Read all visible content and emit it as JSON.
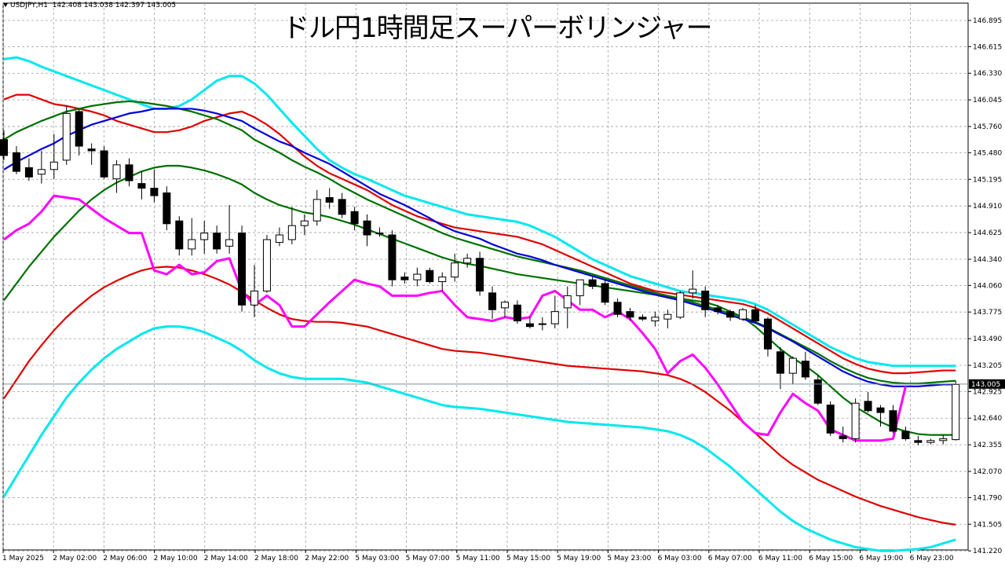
{
  "header": {
    "symbol": "USDJPY,H1",
    "ohlc": "142.408 143.038 142.397 143.005"
  },
  "title": "ドル円1時間足スーパーボリンジャー",
  "current_price": "143.005",
  "colors": {
    "candle_bull": "#ffffff",
    "candle_bear": "#000000",
    "grid": "#a0a0a0",
    "mid": "#0000dd",
    "sigma1": "#007000",
    "sigma2": "#e00000",
    "sigma3": "#00e8ee",
    "chikou": "#ff00ff",
    "price_line": "#7a8fa0"
  },
  "chart_data": {
    "type": "candlestick",
    "symbol": "USDJPY",
    "timeframe": "H1",
    "ylim": [
      141.23,
      147.08
    ],
    "y_ticks": [
      "146.895",
      "146.615",
      "146.330",
      "146.045",
      "145.760",
      "145.480",
      "145.195",
      "144.910",
      "144.625",
      "144.340",
      "144.060",
      "143.775",
      "143.490",
      "143.205",
      "142.925",
      "142.640",
      "142.355",
      "142.070",
      "141.790",
      "141.505",
      "141.220"
    ],
    "x_ticks": [
      "1 May 2025",
      "2 May 02:00",
      "2 May 06:00",
      "2 May 10:00",
      "2 May 14:00",
      "2 May 18:00",
      "2 May 22:00",
      "5 May 03:00",
      "5 May 07:00",
      "5 May 11:00",
      "5 May 15:00",
      "5 May 19:00",
      "5 May 23:00",
      "6 May 03:00",
      "6 May 07:00",
      "6 May 11:00",
      "6 May 15:00",
      "6 May 19:00",
      "6 May 23:00"
    ],
    "candles": [
      [
        145.62,
        145.72,
        145.4,
        145.45
      ],
      [
        145.48,
        145.55,
        145.25,
        145.28
      ],
      [
        145.32,
        145.42,
        145.18,
        145.22
      ],
      [
        145.25,
        145.5,
        145.15,
        145.3
      ],
      [
        145.3,
        145.68,
        145.2,
        145.38
      ],
      [
        145.4,
        145.98,
        145.35,
        145.9
      ],
      [
        145.92,
        145.95,
        145.45,
        145.55
      ],
      [
        145.52,
        145.58,
        145.35,
        145.5
      ],
      [
        145.5,
        145.55,
        145.2,
        145.22
      ],
      [
        145.2,
        145.4,
        145.05,
        145.35
      ],
      [
        145.35,
        145.42,
        145.12,
        145.18
      ],
      [
        145.15,
        145.28,
        144.98,
        145.1
      ],
      [
        145.1,
        145.3,
        144.95,
        145.02
      ],
      [
        145.05,
        145.12,
        144.65,
        144.72
      ],
      [
        144.75,
        144.8,
        144.38,
        144.45
      ],
      [
        144.45,
        144.78,
        144.38,
        144.55
      ],
      [
        144.55,
        144.75,
        144.4,
        144.62
      ],
      [
        144.62,
        144.7,
        144.4,
        144.45
      ],
      [
        144.48,
        144.92,
        144.4,
        144.55
      ],
      [
        144.62,
        144.7,
        143.78,
        143.85
      ],
      [
        143.85,
        144.28,
        143.72,
        144.0
      ],
      [
        144.0,
        144.6,
        143.98,
        144.55
      ],
      [
        144.52,
        144.68,
        144.48,
        144.6
      ],
      [
        144.55,
        144.9,
        144.5,
        144.7
      ],
      [
        144.7,
        144.82,
        144.6,
        144.75
      ],
      [
        144.75,
        145.08,
        144.7,
        144.98
      ],
      [
        145.0,
        145.1,
        144.88,
        144.95
      ],
      [
        144.98,
        145.05,
        144.78,
        144.82
      ],
      [
        144.85,
        144.9,
        144.65,
        144.72
      ],
      [
        144.75,
        144.82,
        144.48,
        144.6
      ],
      [
        144.62,
        144.68,
        144.58,
        144.62
      ],
      [
        144.6,
        144.65,
        144.05,
        144.12
      ],
      [
        144.15,
        144.2,
        144.08,
        144.12
      ],
      [
        144.12,
        144.25,
        144.05,
        144.18
      ],
      [
        144.22,
        144.25,
        144.08,
        144.1
      ],
      [
        144.1,
        144.2,
        144.0,
        144.15
      ],
      [
        144.15,
        144.4,
        144.1,
        144.3
      ],
      [
        144.3,
        144.4,
        144.25,
        144.35
      ],
      [
        144.35,
        144.42,
        143.95,
        144.0
      ],
      [
        143.98,
        144.05,
        143.7,
        143.8
      ],
      [
        143.82,
        143.9,
        143.72,
        143.88
      ],
      [
        143.85,
        143.9,
        143.65,
        143.68
      ],
      [
        143.65,
        143.72,
        143.6,
        143.62
      ],
      [
        143.65,
        143.72,
        143.58,
        143.65
      ],
      [
        143.65,
        143.95,
        143.6,
        143.78
      ],
      [
        143.82,
        144.05,
        143.6,
        143.95
      ],
      [
        143.95,
        144.12,
        143.85,
        144.12
      ],
      [
        144.12,
        144.15,
        144.02,
        144.05
      ],
      [
        144.08,
        144.12,
        143.85,
        143.88
      ],
      [
        143.88,
        143.92,
        143.72,
        143.75
      ],
      [
        143.78,
        143.82,
        143.68,
        143.72
      ],
      [
        143.72,
        143.75,
        143.68,
        143.7
      ],
      [
        143.68,
        143.78,
        143.62,
        143.72
      ],
      [
        143.7,
        143.8,
        143.6,
        143.75
      ],
      [
        143.72,
        144.0,
        143.7,
        143.98
      ],
      [
        143.98,
        144.22,
        143.92,
        144.02
      ],
      [
        144.0,
        144.05,
        143.72,
        143.8
      ],
      [
        143.82,
        143.85,
        143.75,
        143.78
      ],
      [
        143.78,
        143.8,
        143.68,
        143.72
      ],
      [
        143.7,
        143.82,
        143.68,
        143.8
      ],
      [
        143.8,
        143.85,
        143.65,
        143.68
      ],
      [
        143.7,
        143.72,
        143.3,
        143.38
      ],
      [
        143.35,
        143.4,
        142.95,
        143.12
      ],
      [
        143.12,
        143.3,
        143.0,
        143.28
      ],
      [
        143.25,
        143.35,
        143.05,
        143.08
      ],
      [
        143.05,
        143.1,
        142.78,
        142.8
      ],
      [
        142.78,
        142.82,
        142.45,
        142.48
      ],
      [
        142.45,
        142.55,
        142.38,
        142.42
      ],
      [
        142.42,
        142.85,
        142.38,
        142.8
      ],
      [
        142.82,
        142.92,
        142.7,
        142.72
      ],
      [
        142.75,
        142.78,
        142.55,
        142.7
      ],
      [
        142.72,
        142.78,
        142.48,
        142.5
      ],
      [
        142.5,
        142.55,
        142.4,
        142.42
      ],
      [
        142.4,
        142.45,
        142.35,
        142.38
      ],
      [
        142.38,
        142.42,
        142.36,
        142.4
      ],
      [
        142.4,
        142.46,
        142.36,
        142.42
      ],
      [
        142.41,
        143.04,
        142.4,
        143.0
      ]
    ],
    "middle_band": [
      145.3,
      145.38,
      145.45,
      145.52,
      145.58,
      145.66,
      145.72,
      145.78,
      145.82,
      145.86,
      145.9,
      145.92,
      145.95,
      145.95,
      145.95,
      145.95,
      145.93,
      145.9,
      145.86,
      145.82,
      145.74,
      145.67,
      145.6,
      145.55,
      145.48,
      145.42,
      145.36,
      145.28,
      145.2,
      145.12,
      145.04,
      144.98,
      144.92,
      144.85,
      144.78,
      144.7,
      144.64,
      144.6,
      144.56,
      144.5,
      144.45,
      144.4,
      144.37,
      144.33,
      144.28,
      144.24,
      144.2,
      144.16,
      144.12,
      144.08,
      144.04,
      144.0,
      143.96,
      143.93,
      143.9,
      143.86,
      143.82,
      143.78,
      143.74,
      143.7,
      143.66,
      143.6,
      143.53,
      143.46,
      143.38,
      143.3,
      143.22,
      143.14,
      143.08,
      143.03,
      143.0,
      142.98,
      142.98,
      142.98,
      142.99,
      143.0,
      143.0
    ],
    "sigma1_upper": [
      145.62,
      145.7,
      145.76,
      145.82,
      145.87,
      145.92,
      145.95,
      145.98,
      146.0,
      146.02,
      146.03,
      146.02,
      146.0,
      145.98,
      145.95,
      145.92,
      145.88,
      145.84,
      145.78,
      145.72,
      145.62,
      145.55,
      145.48,
      145.4,
      145.33,
      145.27,
      145.2,
      145.12,
      145.05,
      144.98,
      144.92,
      144.86,
      144.8,
      144.74,
      144.68,
      144.62,
      144.57,
      144.53,
      144.49,
      144.45,
      144.41,
      144.37,
      144.34,
      144.31,
      144.28,
      144.25,
      144.22,
      144.18,
      144.14,
      144.1,
      144.06,
      144.02,
      143.98,
      143.95,
      143.92,
      143.88,
      143.84,
      143.8,
      143.76,
      143.72,
      143.67,
      143.61,
      143.54,
      143.47,
      143.4,
      143.33,
      143.25,
      143.18,
      143.12,
      143.07,
      143.04,
      143.02,
      143.01,
      143.01,
      143.02,
      143.03,
      143.04
    ],
    "sigma1_lower": [
      143.9,
      144.08,
      144.26,
      144.42,
      144.58,
      144.72,
      144.86,
      144.98,
      145.08,
      145.16,
      145.22,
      145.28,
      145.32,
      145.34,
      145.34,
      145.32,
      145.29,
      145.25,
      145.2,
      145.14,
      145.05,
      144.98,
      144.92,
      144.88,
      144.84,
      144.82,
      144.79,
      144.75,
      144.71,
      144.66,
      144.61,
      144.56,
      144.51,
      144.46,
      144.41,
      144.36,
      144.32,
      144.29,
      144.27,
      144.24,
      144.21,
      144.18,
      144.16,
      144.14,
      144.12,
      144.1,
      144.08,
      144.06,
      144.04,
      144.02,
      144.0,
      143.98,
      143.96,
      143.94,
      143.92,
      143.9,
      143.88,
      143.84,
      143.78,
      143.72,
      143.62,
      143.5,
      143.38,
      143.28,
      143.2,
      143.1,
      142.98,
      142.86,
      142.76,
      142.68,
      142.6,
      142.54,
      142.5,
      142.47,
      142.46,
      142.46,
      142.46
    ],
    "sigma2_upper": [
      146.05,
      146.1,
      146.1,
      146.05,
      146.0,
      145.98,
      145.95,
      145.92,
      145.88,
      145.82,
      145.78,
      145.74,
      145.7,
      145.7,
      145.72,
      145.76,
      145.82,
      145.86,
      145.9,
      145.92,
      145.86,
      145.78,
      145.68,
      145.56,
      145.44,
      145.34,
      145.26,
      145.2,
      145.14,
      145.08,
      145.0,
      144.92,
      144.86,
      144.8,
      144.76,
      144.72,
      144.68,
      144.66,
      144.64,
      144.62,
      144.6,
      144.58,
      144.54,
      144.5,
      144.44,
      144.38,
      144.32,
      144.26,
      144.2,
      144.14,
      144.08,
      144.04,
      144.0,
      143.98,
      143.96,
      143.94,
      143.92,
      143.9,
      143.88,
      143.86,
      143.82,
      143.76,
      143.68,
      143.6,
      143.52,
      143.44,
      143.36,
      143.28,
      143.22,
      143.17,
      143.14,
      143.12,
      143.12,
      143.13,
      143.14,
      143.15,
      143.15
    ],
    "sigma2_lower": [
      142.85,
      143.05,
      143.25,
      143.42,
      143.58,
      143.72,
      143.84,
      143.95,
      144.04,
      144.11,
      144.17,
      144.22,
      144.25,
      144.26,
      144.25,
      144.22,
      144.18,
      144.13,
      144.07,
      143.99,
      143.9,
      143.82,
      143.75,
      143.7,
      143.68,
      143.67,
      143.67,
      143.66,
      143.64,
      143.62,
      143.58,
      143.54,
      143.5,
      143.46,
      143.42,
      143.38,
      143.36,
      143.35,
      143.34,
      143.32,
      143.3,
      143.28,
      143.26,
      143.24,
      143.22,
      143.2,
      143.19,
      143.18,
      143.17,
      143.16,
      143.15,
      143.14,
      143.12,
      143.1,
      143.06,
      143.0,
      142.92,
      142.82,
      142.72,
      142.6,
      142.48,
      142.36,
      142.24,
      142.14,
      142.06,
      141.98,
      141.92,
      141.86,
      141.8,
      141.75,
      141.7,
      141.66,
      141.62,
      141.58,
      141.55,
      141.52,
      141.5
    ],
    "sigma3_upper": [
      146.48,
      146.5,
      146.46,
      146.4,
      146.35,
      146.3,
      146.25,
      146.2,
      146.15,
      146.1,
      146.05,
      146.0,
      145.95,
      145.95,
      145.98,
      146.05,
      146.15,
      146.25,
      146.3,
      146.3,
      146.22,
      146.1,
      145.95,
      145.8,
      145.66,
      145.52,
      145.4,
      145.32,
      145.25,
      145.2,
      145.14,
      145.08,
      145.02,
      144.98,
      144.94,
      144.9,
      144.86,
      144.82,
      144.8,
      144.78,
      144.76,
      144.74,
      144.7,
      144.64,
      144.58,
      144.5,
      144.42,
      144.34,
      144.28,
      144.22,
      144.16,
      144.12,
      144.08,
      144.04,
      144.0,
      143.98,
      143.96,
      143.94,
      143.92,
      143.9,
      143.86,
      143.8,
      143.72,
      143.64,
      143.56,
      143.48,
      143.4,
      143.34,
      143.28,
      143.24,
      143.22,
      143.2,
      143.2,
      143.2,
      143.2,
      143.2,
      143.2
    ],
    "sigma3_lower": [
      141.8,
      142.02,
      142.24,
      142.46,
      142.66,
      142.86,
      143.02,
      143.16,
      143.28,
      143.38,
      143.46,
      143.54,
      143.6,
      143.62,
      143.62,
      143.6,
      143.56,
      143.5,
      143.44,
      143.36,
      143.26,
      143.18,
      143.12,
      143.08,
      143.06,
      143.06,
      143.06,
      143.06,
      143.04,
      143.02,
      142.98,
      142.94,
      142.9,
      142.86,
      142.82,
      142.78,
      142.76,
      142.75,
      142.74,
      142.72,
      142.7,
      142.68,
      142.66,
      142.64,
      142.62,
      142.6,
      142.59,
      142.58,
      142.57,
      142.56,
      142.55,
      142.54,
      142.52,
      142.5,
      142.46,
      142.4,
      142.32,
      142.22,
      142.12,
      142.0,
      141.88,
      141.76,
      141.64,
      141.54,
      141.46,
      141.4,
      141.34,
      141.3,
      141.26,
      141.24,
      141.22,
      141.22,
      141.23,
      141.24,
      141.26,
      141.3,
      141.34
    ],
    "chikou_span": [
      144.55,
      144.65,
      144.72,
      144.85,
      145.02,
      145.0,
      144.98,
      144.88,
      144.78,
      144.7,
      144.62,
      144.62,
      144.22,
      144.18,
      144.28,
      144.18,
      144.2,
      144.32,
      144.35,
      144.0,
      143.85,
      143.95,
      143.85,
      143.62,
      143.62,
      143.75,
      143.88,
      144.0,
      144.12,
      144.08,
      144.05,
      143.95,
      143.95,
      143.95,
      143.98,
      144.0,
      143.85,
      143.72,
      143.7,
      143.68,
      143.72,
      143.7,
      143.72,
      143.95,
      144.0,
      143.9,
      143.8,
      143.8,
      143.72,
      143.78,
      143.7,
      143.55,
      143.38,
      143.12,
      143.25,
      143.32,
      143.18,
      143.0,
      142.8,
      142.6,
      142.48,
      142.46,
      142.7,
      142.9,
      142.8,
      142.72,
      142.52,
      142.46,
      142.4,
      142.4,
      142.4,
      142.42,
      142.98
    ]
  }
}
